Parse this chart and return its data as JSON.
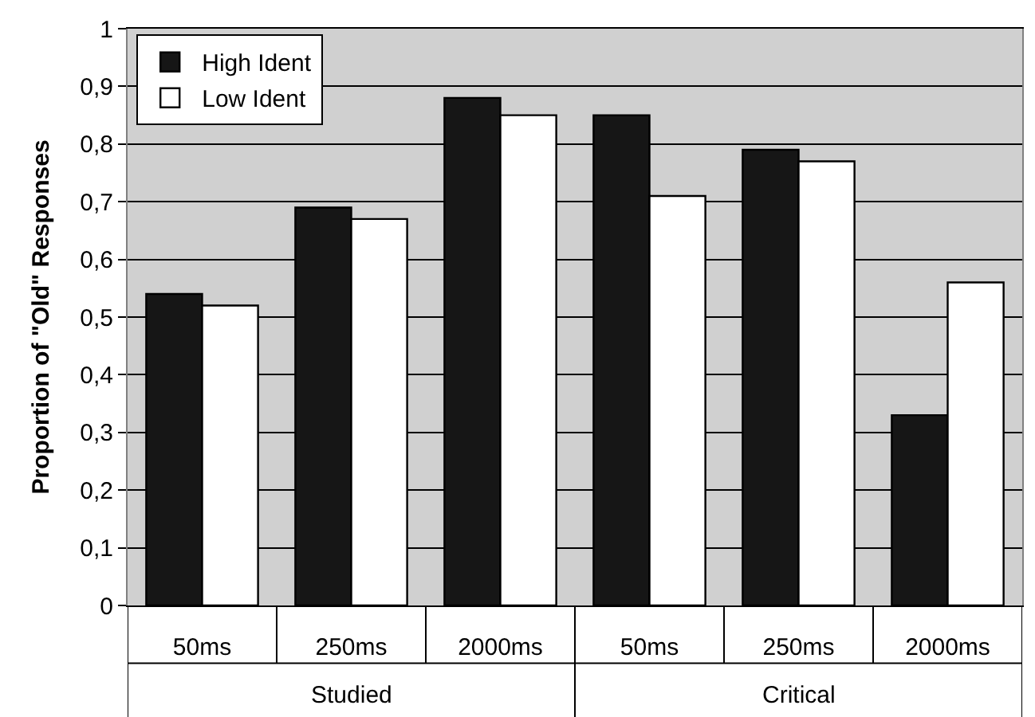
{
  "chart_data": {
    "type": "bar",
    "ylabel": "Proportion of \"Old\" Responses",
    "categories": [
      "50ms",
      "250ms",
      "2000ms",
      "50ms",
      "250ms",
      "2000ms"
    ],
    "annotations": [
      "Studied",
      "Critical"
    ],
    "series": [
      {
        "name": "High Ident",
        "color": "#161616",
        "values": [
          0.54,
          0.69,
          0.88,
          0.85,
          0.79,
          0.33
        ]
      },
      {
        "name": "Low Ident",
        "color": "#ffffff",
        "values": [
          0.52,
          0.67,
          0.85,
          0.71,
          0.77,
          0.56
        ]
      }
    ],
    "ylim": [
      0,
      1
    ],
    "yticks": [
      0,
      {
        "value": 0.1,
        "label": "0,1"
      },
      {
        "value": 0.2,
        "label": "0,2"
      },
      {
        "value": 0.3,
        "label": "0,3"
      },
      {
        "value": 0.4,
        "label": "0,4"
      },
      {
        "value": 0.5,
        "label": "0,5"
      },
      {
        "value": 0.6,
        "label": "0,6"
      },
      {
        "value": 0.7,
        "label": "0,7"
      },
      {
        "value": 0.8,
        "label": "0,8"
      },
      {
        "value": 0.9,
        "label": "0,9"
      },
      1
    ],
    "grid": "y",
    "legend": "top left"
  }
}
